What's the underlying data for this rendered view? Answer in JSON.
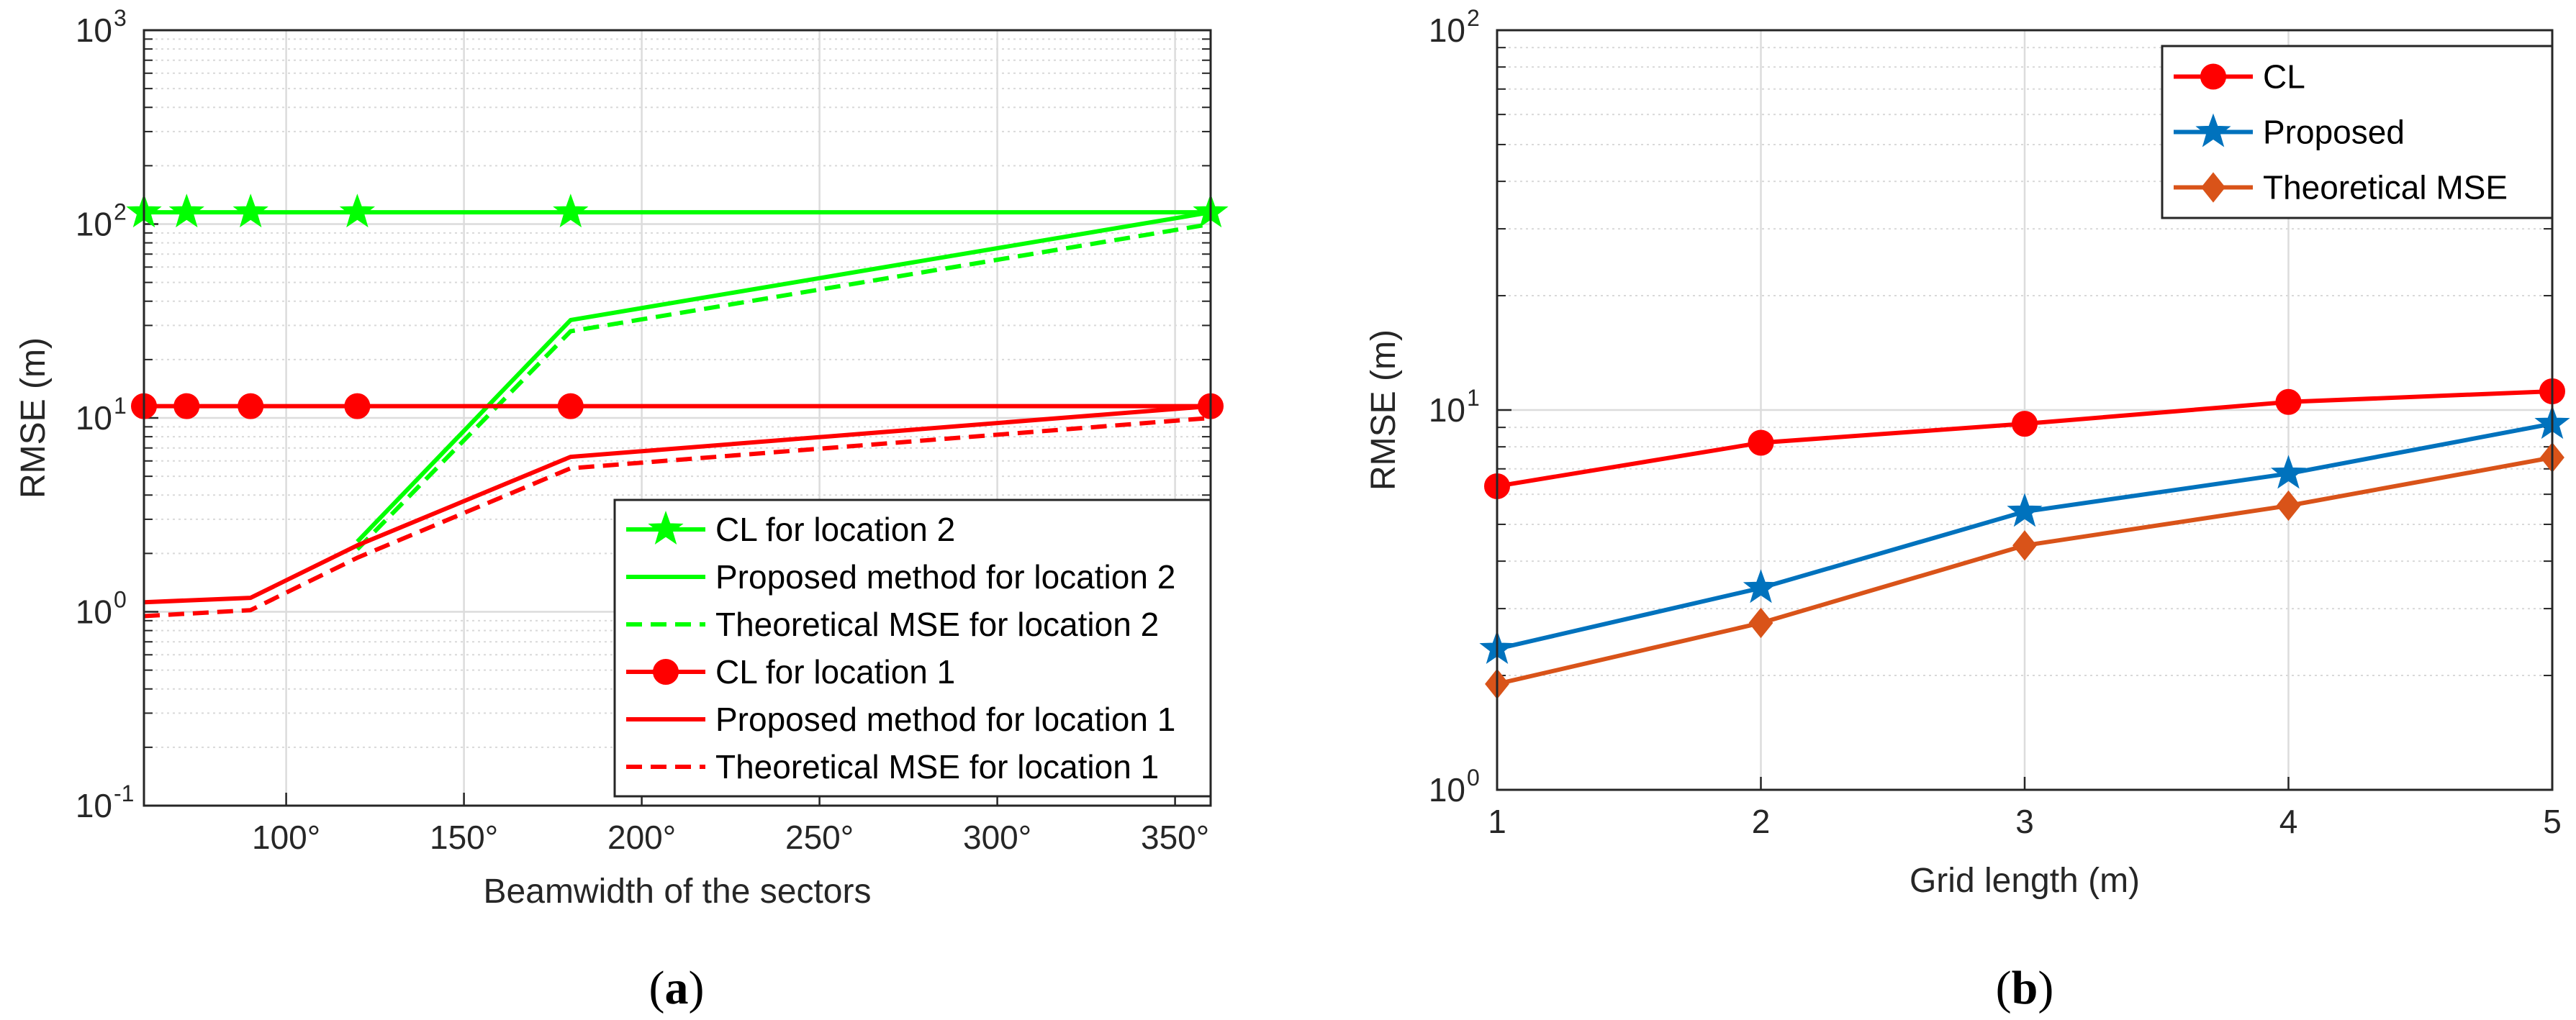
{
  "chart_data": [
    {
      "id": "a",
      "type": "line",
      "caption_letter": "a",
      "xlabel": "Beamwidth of the sectors",
      "ylabel": "RMSE (m)",
      "yscale": "log",
      "xlim": [
        60,
        360
      ],
      "ylim": [
        0.1,
        1000
      ],
      "xticks": [
        100,
        150,
        200,
        250,
        300,
        350
      ],
      "xtick_labels": [
        "100°",
        "150°",
        "200°",
        "250°",
        "300°",
        "350°"
      ],
      "yticks": [
        0.1,
        1,
        10,
        100,
        1000
      ],
      "ytick_labels": [
        {
          "base": "10",
          "exp": "-1"
        },
        {
          "base": "10",
          "exp": "0"
        },
        {
          "base": "10",
          "exp": "1"
        },
        {
          "base": "10",
          "exp": "2"
        },
        {
          "base": "10",
          "exp": "3"
        }
      ],
      "legend_position": "lower-right",
      "series": [
        {
          "name": "CL for location 2",
          "color": "#00ff00",
          "line": "solid",
          "marker": "star",
          "x": [
            60,
            72,
            90,
            120,
            180,
            360
          ],
          "y": [
            115,
            115,
            115,
            115,
            115,
            115
          ]
        },
        {
          "name": "Proposed method for location 2",
          "color": "#00ff00",
          "line": "solid",
          "marker": "none",
          "x": [
            120,
            180,
            360
          ],
          "y": [
            2.3,
            32,
            115
          ]
        },
        {
          "name": "Theoretical MSE for location 2",
          "color": "#00ff00",
          "line": "dashed",
          "marker": "none",
          "x": [
            120,
            180,
            360
          ],
          "y": [
            2.1,
            28,
            100
          ]
        },
        {
          "name": "CL for location 1",
          "color": "#ff0000",
          "line": "solid",
          "marker": "circle",
          "x": [
            60,
            72,
            90,
            120,
            180,
            360
          ],
          "y": [
            11.5,
            11.5,
            11.5,
            11.5,
            11.5,
            11.5
          ]
        },
        {
          "name": "Proposed method for location 1",
          "color": "#ff0000",
          "line": "solid",
          "marker": "none",
          "x": [
            60,
            90,
            120,
            180,
            360
          ],
          "y": [
            1.12,
            1.18,
            2.2,
            6.3,
            11.5
          ]
        },
        {
          "name": "Theoretical MSE for location 1",
          "color": "#ff0000",
          "line": "dashed",
          "marker": "none",
          "x": [
            60,
            90,
            120,
            180,
            360
          ],
          "y": [
            0.95,
            1.02,
            1.9,
            5.5,
            10
          ]
        }
      ]
    },
    {
      "id": "b",
      "type": "line",
      "caption_letter": "b",
      "xlabel": "Grid length (m)",
      "ylabel": "RMSE (m)",
      "yscale": "log",
      "xlim": [
        1,
        5
      ],
      "ylim": [
        1,
        100
      ],
      "xticks": [
        1,
        2,
        3,
        4,
        5
      ],
      "xtick_labels": [
        "1",
        "2",
        "3",
        "4",
        "5"
      ],
      "yticks": [
        1,
        10,
        100
      ],
      "ytick_labels": [
        {
          "base": "10",
          "exp": "0"
        },
        {
          "base": "10",
          "exp": "1"
        },
        {
          "base": "10",
          "exp": "2"
        }
      ],
      "legend_position": "top-right",
      "series": [
        {
          "name": "CL",
          "color": "#ff0000",
          "line": "solid",
          "marker": "circle",
          "x": [
            1,
            2,
            3,
            4,
            5
          ],
          "y": [
            6.3,
            8.2,
            9.2,
            10.5,
            11.2
          ]
        },
        {
          "name": "Proposed",
          "color": "#0072bd",
          "line": "solid",
          "marker": "star",
          "x": [
            1,
            2,
            3,
            4,
            5
          ],
          "y": [
            2.35,
            3.4,
            5.4,
            6.8,
            9.2
          ]
        },
        {
          "name": "Theoretical MSE",
          "color": "#d95319",
          "line": "solid",
          "marker": "diamond",
          "x": [
            1,
            2,
            3,
            4,
            5
          ],
          "y": [
            1.9,
            2.75,
            4.4,
            5.6,
            7.5
          ]
        }
      ]
    }
  ]
}
